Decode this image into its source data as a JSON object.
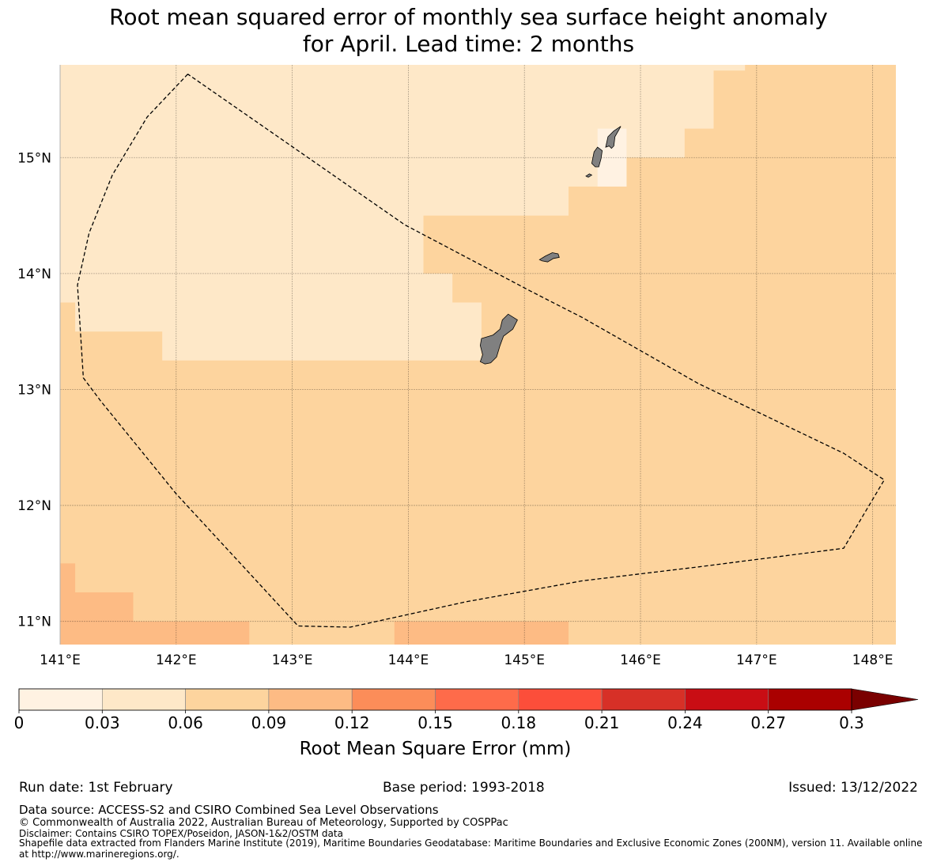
{
  "title": {
    "line1": "Root mean squared error of monthly sea surface height anomaly",
    "line2": "for April. Lead time: 2 months"
  },
  "map": {
    "lat_range": [
      10.8,
      15.8
    ],
    "lon_range": [
      141.0,
      148.2
    ],
    "lat_ticks": [
      {
        "value": 11,
        "label": "11°N"
      },
      {
        "value": 12,
        "label": "12°N"
      },
      {
        "value": 13,
        "label": "13°N"
      },
      {
        "value": 14,
        "label": "14°N"
      },
      {
        "value": 15,
        "label": "15°N"
      }
    ],
    "lon_ticks": [
      {
        "value": 141,
        "label": "141°E"
      },
      {
        "value": 142,
        "label": "142°E"
      },
      {
        "value": 143,
        "label": "143°E"
      },
      {
        "value": 144,
        "label": "144°E"
      },
      {
        "value": 145,
        "label": "145°E"
      },
      {
        "value": 146,
        "label": "146°E"
      },
      {
        "value": 147,
        "label": "147°E"
      },
      {
        "value": 148,
        "label": "148°E"
      }
    ],
    "background_bin_color": "#fdd49e",
    "rmse_regions": [
      {
        "name": "rmse-region-0.03-0.06",
        "color": "#fee8c8",
        "polygon": [
          [
            141.0,
            15.8
          ],
          [
            146.9,
            15.8
          ],
          [
            146.9,
            15.75
          ],
          [
            146.63,
            15.75
          ],
          [
            146.63,
            15.25
          ],
          [
            146.38,
            15.25
          ],
          [
            146.38,
            15.0
          ],
          [
            145.88,
            15.0
          ],
          [
            145.88,
            14.75
          ],
          [
            145.38,
            14.75
          ],
          [
            145.38,
            14.5
          ],
          [
            144.13,
            14.5
          ],
          [
            144.13,
            14.0
          ],
          [
            144.38,
            14.0
          ],
          [
            144.38,
            13.75
          ],
          [
            144.63,
            13.75
          ],
          [
            144.63,
            13.25
          ],
          [
            141.88,
            13.25
          ],
          [
            141.88,
            13.5
          ],
          [
            141.13,
            13.5
          ],
          [
            141.13,
            13.75
          ],
          [
            141.0,
            13.75
          ]
        ]
      },
      {
        "name": "rmse-region-0.00-0.03-inset",
        "color": "#fff2e2",
        "polygon": [
          [
            145.63,
            15.25
          ],
          [
            145.88,
            15.25
          ],
          [
            145.88,
            14.75
          ],
          [
            145.63,
            14.75
          ]
        ]
      },
      {
        "name": "rmse-region-0.09-0.12-west",
        "color": "#fdbb84",
        "polygon": [
          [
            141.0,
            11.5
          ],
          [
            141.13,
            11.5
          ],
          [
            141.13,
            11.25
          ],
          [
            141.63,
            11.25
          ],
          [
            141.63,
            11.0
          ],
          [
            142.63,
            11.0
          ],
          [
            142.63,
            10.8
          ],
          [
            141.0,
            10.8
          ]
        ]
      },
      {
        "name": "rmse-region-0.09-0.12-south",
        "color": "#fdbb84",
        "polygon": [
          [
            143.88,
            11.0
          ],
          [
            145.38,
            11.0
          ],
          [
            145.38,
            10.8
          ],
          [
            143.88,
            10.8
          ]
        ]
      }
    ],
    "islands": [
      {
        "name": "guam-island",
        "polygon": [
          [
            144.62,
            13.24
          ],
          [
            144.64,
            13.3
          ],
          [
            144.62,
            13.38
          ],
          [
            144.63,
            13.44
          ],
          [
            144.73,
            13.47
          ],
          [
            144.79,
            13.52
          ],
          [
            144.81,
            13.6
          ],
          [
            144.86,
            13.65
          ],
          [
            144.94,
            13.6
          ],
          [
            144.9,
            13.52
          ],
          [
            144.82,
            13.46
          ],
          [
            144.79,
            13.38
          ],
          [
            144.76,
            13.28
          ],
          [
            144.71,
            13.23
          ],
          [
            144.66,
            13.22
          ]
        ]
      },
      {
        "name": "rota-island",
        "polygon": [
          [
            145.13,
            14.12
          ],
          [
            145.18,
            14.15
          ],
          [
            145.24,
            14.18
          ],
          [
            145.29,
            14.17
          ],
          [
            145.3,
            14.14
          ],
          [
            145.25,
            14.13
          ],
          [
            145.2,
            14.1
          ],
          [
            145.15,
            14.11
          ]
        ]
      },
      {
        "name": "tinian-island",
        "polygon": [
          [
            145.58,
            14.95
          ],
          [
            145.6,
            15.05
          ],
          [
            145.63,
            15.09
          ],
          [
            145.67,
            15.06
          ],
          [
            145.66,
            14.99
          ],
          [
            145.64,
            14.92
          ],
          [
            145.61,
            14.92
          ]
        ]
      },
      {
        "name": "saipan-island",
        "polygon": [
          [
            145.7,
            15.09
          ],
          [
            145.72,
            15.18
          ],
          [
            145.77,
            15.23
          ],
          [
            145.83,
            15.27
          ],
          [
            145.82,
            15.25
          ],
          [
            145.78,
            15.18
          ],
          [
            145.77,
            15.1
          ],
          [
            145.75,
            15.08
          ],
          [
            145.73,
            15.1
          ]
        ]
      },
      {
        "name": "aguijan-island",
        "polygon": [
          [
            145.53,
            14.84
          ],
          [
            145.56,
            14.86
          ],
          [
            145.58,
            14.85
          ],
          [
            145.55,
            14.83
          ]
        ]
      }
    ],
    "eez_boundary": [
      [
        142.1,
        15.72
      ],
      [
        141.75,
        15.35
      ],
      [
        141.45,
        14.85
      ],
      [
        141.25,
        14.35
      ],
      [
        141.15,
        13.9
      ],
      [
        141.2,
        13.1
      ],
      [
        141.35,
        12.9
      ],
      [
        142.0,
        12.1
      ],
      [
        143.05,
        10.96
      ],
      [
        143.5,
        10.95
      ],
      [
        144.5,
        11.17
      ],
      [
        145.5,
        11.35
      ],
      [
        146.5,
        11.47
      ],
      [
        147.75,
        11.63
      ],
      [
        148.1,
        12.22
      ],
      [
        147.75,
        12.45
      ],
      [
        146.5,
        13.05
      ],
      [
        145.5,
        13.62
      ],
      [
        145.05,
        13.85
      ],
      [
        143.97,
        14.42
      ],
      [
        142.1,
        15.72
      ]
    ]
  },
  "colorbar": {
    "colors": [
      "#fff2e2",
      "#fee8c8",
      "#fdd49e",
      "#fdbb84",
      "#fc8d59",
      "#fe6b4a",
      "#fc4e3a",
      "#d73027",
      "#c90d14",
      "#aa0000"
    ],
    "extend_color": "#7a0000",
    "tick_labels": [
      "0",
      "0.03",
      "0.06",
      "0.09",
      "0.12",
      "0.15",
      "0.18",
      "0.21",
      "0.24",
      "0.27",
      "0.3"
    ],
    "label": "Root Mean Square Error (mm)"
  },
  "footer": {
    "run_date": "Run date: 1st February",
    "base_period": "Base period: 1993-2018",
    "issued": "Issued: 13/12/2022",
    "data_source": "Data source: ACCESS-S2 and CSIRO Combined Sea Level Observations",
    "copyright": "© Commonwealth of Australia 2022, Australian Bureau of Meteorology, Supported by COSPPac",
    "disclaimer": "Disclaimer: Contains CSIRO TOPEX/Poseidon, JASON-1&2/OSTM data",
    "shapefile_line1": "Shapefile data extracted from Flanders Marine Institute (2019), Maritime Boundaries Geodatabase: Maritime Boundaries and Exclusive Economic Zones (200NM), version 11. Available online",
    "shapefile_line2": "at http://www.marineregions.org/."
  }
}
